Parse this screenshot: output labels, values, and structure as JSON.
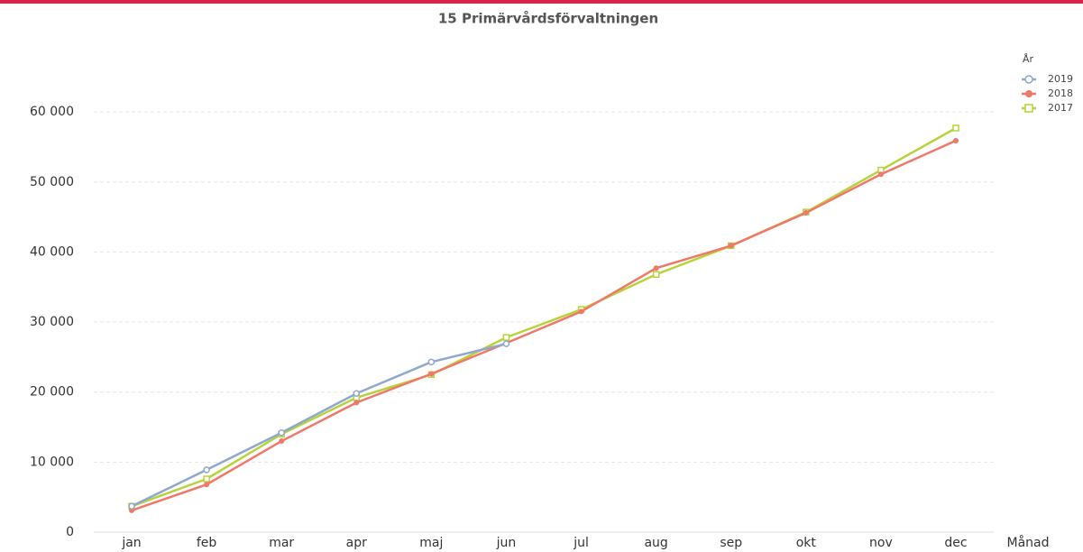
{
  "chart_data": {
    "type": "line",
    "title": "15 Primärvårdsförvaltningen",
    "x_label": "Månad",
    "legend_title": "År",
    "legend": "top-right",
    "grid": true,
    "categories": [
      "jan",
      "feb",
      "mar",
      "apr",
      "maj",
      "jun",
      "jul",
      "aug",
      "sep",
      "okt",
      "nov",
      "dec"
    ],
    "series": [
      {
        "name": "2019",
        "color": "#8fa8cc",
        "marker": "circle",
        "values": [
          3700,
          8900,
          14200,
          19800,
          24300,
          26900,
          null,
          null,
          null,
          null,
          null,
          null
        ]
      },
      {
        "name": "2018",
        "color": "#f0786a",
        "marker": "dot",
        "values": [
          3100,
          6800,
          13000,
          18500,
          22600,
          27000,
          31500,
          37700,
          40900,
          45600,
          51100,
          55900
        ]
      },
      {
        "name": "2017",
        "color": "#b6d43a",
        "marker": "square",
        "values": [
          3700,
          7600,
          14000,
          19200,
          22500,
          27800,
          31800,
          36800,
          40900,
          45700,
          51700,
          57700
        ]
      }
    ],
    "ylim": [
      0,
      68000
    ],
    "yticks": [
      0,
      {
        "value": 10000,
        "label": "10 000"
      },
      {
        "value": 20000,
        "label": "20 000"
      },
      {
        "value": 30000,
        "label": "30 000"
      },
      {
        "value": 40000,
        "label": "40 000"
      },
      {
        "value": 50000,
        "label": "50 000"
      },
      {
        "value": 60000,
        "label": "60 000"
      }
    ]
  }
}
